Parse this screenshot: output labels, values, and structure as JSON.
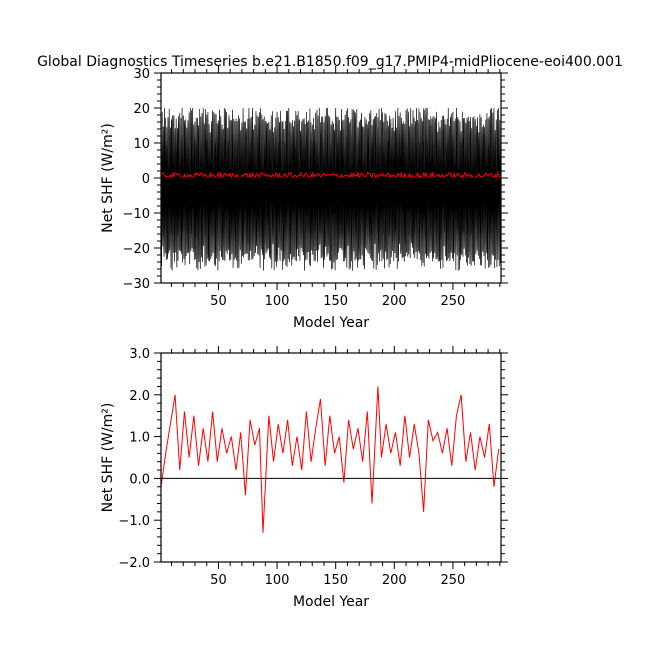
{
  "title": "Global Diagnostics Timeseries b.e21.B1850.f09_g17.PMIP4-midPliocene-eoi400.001",
  "colors": {
    "monthly": "#000000",
    "annual": "#ff0000",
    "zero_line": "#000000",
    "background": "#ffffff"
  },
  "chart_data": [
    {
      "type": "line",
      "title": "Global Diagnostics Timeseries b.e21.B1850.f09_g17.PMIP4-midPliocene-eoi400.001",
      "xlabel": "Model Year",
      "ylabel": "Net SHF (W/m²)",
      "xlim": [
        1,
        291
      ],
      "ylim": [
        -30,
        30
      ],
      "xticks": [
        50,
        100,
        150,
        200,
        250
      ],
      "xtick_labels": [
        "50",
        "100",
        "150",
        "200",
        "250"
      ],
      "yticks": [
        -30,
        -20,
        -10,
        0,
        10,
        20,
        30
      ],
      "ytick_labels": [
        "−30",
        "−20",
        "−10",
        "0",
        "10",
        "20",
        "30"
      ],
      "zero_line": true,
      "series": [
        {
          "role": "monthly",
          "color": "#000000",
          "months_per_year": 12,
          "envelope_upper": 16.5,
          "envelope_lower": -22.5,
          "extreme_max": 20,
          "extreme_min": -27
        },
        {
          "role": "annual",
          "color": "#ff0000",
          "mean": 0.7
        }
      ]
    },
    {
      "type": "line",
      "xlabel": "Model Year",
      "ylabel": "Net SHF (W/m²)",
      "xlim": [
        1,
        291
      ],
      "ylim": [
        -2,
        3
      ],
      "xticks": [
        50,
        100,
        150,
        200,
        250
      ],
      "xtick_labels": [
        "50",
        "100",
        "150",
        "200",
        "250"
      ],
      "yticks": [
        -2,
        -1,
        0,
        1,
        2,
        3
      ],
      "ytick_labels": [
        "−2.0",
        "−1.0",
        "0.0",
        "1.0",
        "2.0",
        "3.0"
      ],
      "zero_line": true,
      "series": [
        {
          "role": "annual",
          "color": "#ff0000",
          "x": [
            1,
            5,
            9,
            13,
            17,
            21,
            25,
            29,
            33,
            37,
            41,
            45,
            49,
            53,
            57,
            61,
            65,
            69,
            73,
            77,
            81,
            85,
            88,
            93,
            97,
            101,
            105,
            109,
            113,
            117,
            121,
            125,
            129,
            133,
            137,
            141,
            145,
            149,
            153,
            157,
            161,
            165,
            169,
            173,
            177,
            181,
            186,
            189,
            193,
            197,
            201,
            205,
            209,
            213,
            217,
            221,
            225,
            229,
            233,
            237,
            241,
            245,
            249,
            253,
            257,
            261,
            265,
            269,
            273,
            277,
            281,
            285,
            289
          ],
          "y": [
            -0.2,
            0.6,
            1.3,
            2.0,
            0.2,
            1.6,
            0.5,
            1.5,
            0.3,
            1.2,
            0.4,
            1.6,
            0.4,
            1.2,
            0.6,
            1.0,
            0.2,
            1.1,
            -0.4,
            1.4,
            0.8,
            1.2,
            -1.3,
            1.5,
            0.4,
            1.3,
            0.6,
            1.4,
            0.3,
            1.0,
            0.2,
            1.6,
            0.4,
            1.2,
            1.9,
            0.3,
            1.5,
            0.6,
            1.0,
            -0.1,
            1.4,
            0.7,
            1.2,
            0.4,
            1.6,
            -0.6,
            2.2,
            0.5,
            1.3,
            0.6,
            1.1,
            0.3,
            1.5,
            0.5,
            1.3,
            0.6,
            -0.8,
            1.4,
            0.9,
            1.1,
            0.6,
            1.2,
            0.3,
            1.5,
            2.0,
            0.4,
            1.1,
            0.2,
            1.0,
            0.5,
            1.3,
            -0.2,
            0.7
          ]
        }
      ]
    }
  ]
}
